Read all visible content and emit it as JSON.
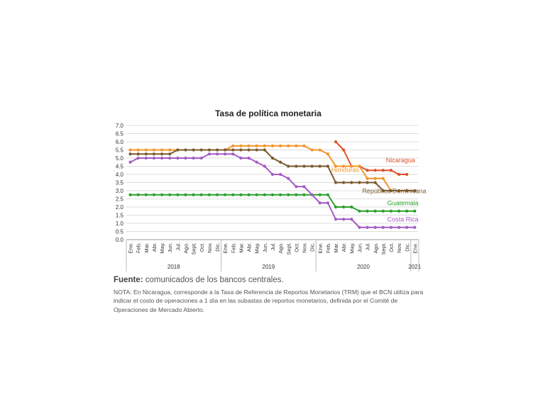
{
  "chart_data": {
    "type": "line",
    "title": "Tasa de política monetaria",
    "ylim": [
      0,
      7
    ],
    "yticks": [
      "0.0",
      "0.5",
      "1.0",
      "1.5",
      "2.0",
      "2.5",
      "3.0",
      "3.5",
      "4.0",
      "4.5",
      "5.0",
      "5.5",
      "6.0",
      "6.5",
      "7.0"
    ],
    "grid": true,
    "x": [
      "Ene.",
      "Feb.",
      "Mar.",
      "Abr.",
      "May.",
      "Jun.",
      "Jul.",
      "Ago.",
      "Sept.",
      "Oct.",
      "Nov.",
      "Dic.",
      "Ene.",
      "Feb.",
      "Mar.",
      "Abr.",
      "May.",
      "Jun.",
      "Jul.",
      "Ago.",
      "Sept.",
      "Oct.",
      "Nov.",
      "Dic.",
      "Ene.",
      "Feb.",
      "Mar.",
      "Abr.",
      "May.",
      "Jun.",
      "Jul.",
      "Ago.",
      "Sept.",
      "Oct.",
      "Nov.",
      "Dic.",
      "Ene."
    ],
    "years": [
      {
        "label": "2018",
        "start": 0,
        "end": 11
      },
      {
        "label": "2019",
        "start": 12,
        "end": 23
      },
      {
        "label": "2020",
        "start": 24,
        "end": 35
      },
      {
        "label": "2021",
        "start": 36,
        "end": 36
      }
    ],
    "series": [
      {
        "name": "Nicaragua",
        "color": "#e0502a",
        "label_index": 34.2,
        "label_value": 4.75,
        "values": [
          null,
          null,
          null,
          null,
          null,
          null,
          null,
          null,
          null,
          null,
          null,
          null,
          null,
          null,
          null,
          null,
          null,
          null,
          null,
          null,
          null,
          null,
          null,
          null,
          null,
          null,
          6.0,
          5.5,
          4.5,
          4.5,
          4.25,
          4.25,
          4.25,
          4.25,
          4.0,
          4.0,
          null
        ]
      },
      {
        "name": "Honduras",
        "color": "#f2952a",
        "label_index": 27.2,
        "label_value": 4.15,
        "values": [
          5.5,
          5.5,
          5.5,
          5.5,
          5.5,
          5.5,
          5.5,
          5.5,
          5.5,
          5.5,
          5.5,
          5.5,
          5.5,
          5.75,
          5.75,
          5.75,
          5.75,
          5.75,
          5.75,
          5.75,
          5.75,
          5.75,
          5.75,
          5.5,
          5.5,
          5.25,
          4.5,
          4.5,
          4.5,
          4.5,
          3.75,
          3.75,
          3.75,
          3.0,
          3.0,
          3.0,
          3.0
        ]
      },
      {
        "name": "República Dominicana",
        "color": "#7b5a2e",
        "label_index": 33.4,
        "label_value": 2.85,
        "values": [
          5.25,
          5.25,
          5.25,
          5.25,
          5.25,
          5.25,
          5.5,
          5.5,
          5.5,
          5.5,
          5.5,
          5.5,
          5.5,
          5.5,
          5.5,
          5.5,
          5.5,
          5.5,
          5.0,
          4.75,
          4.5,
          4.5,
          4.5,
          4.5,
          4.5,
          4.5,
          3.5,
          3.5,
          3.5,
          3.5,
          3.5,
          3.5,
          3.0,
          3.0,
          3.0,
          3.0,
          3.0
        ]
      },
      {
        "name": "Guatemala",
        "color": "#2aa02a",
        "label_index": 34.5,
        "label_value": 2.1,
        "values": [
          2.75,
          2.75,
          2.75,
          2.75,
          2.75,
          2.75,
          2.75,
          2.75,
          2.75,
          2.75,
          2.75,
          2.75,
          2.75,
          2.75,
          2.75,
          2.75,
          2.75,
          2.75,
          2.75,
          2.75,
          2.75,
          2.75,
          2.75,
          2.75,
          2.75,
          2.75,
          2.0,
          2.0,
          2.0,
          1.75,
          1.75,
          1.75,
          1.75,
          1.75,
          1.75,
          1.75,
          1.75
        ]
      },
      {
        "name": "Costa Rica",
        "color": "#a55bc6",
        "label_index": 34.5,
        "label_value": 1.1,
        "values": [
          4.75,
          5.0,
          5.0,
          5.0,
          5.0,
          5.0,
          5.0,
          5.0,
          5.0,
          5.0,
          5.25,
          5.25,
          5.25,
          5.25,
          5.0,
          5.0,
          4.75,
          4.5,
          4.0,
          4.0,
          3.75,
          3.25,
          3.25,
          2.75,
          2.25,
          2.25,
          1.25,
          1.25,
          1.25,
          0.75,
          0.75,
          0.75,
          0.75,
          0.75,
          0.75,
          0.75,
          0.75
        ]
      }
    ]
  },
  "source": {
    "label": "Fuente:",
    "text": " comunicados de los bancos centrales.",
    "note": "NOTA: En Nicaragua, corresponde a la Tasa de Referencia de Reportos Monetarios (TRM) que el BCN utiliza para indicar el costo de operaciones a 1 día en las subastas de reportos monetarios, definida por el Comité de Operaciones de Mercado Abierto."
  }
}
